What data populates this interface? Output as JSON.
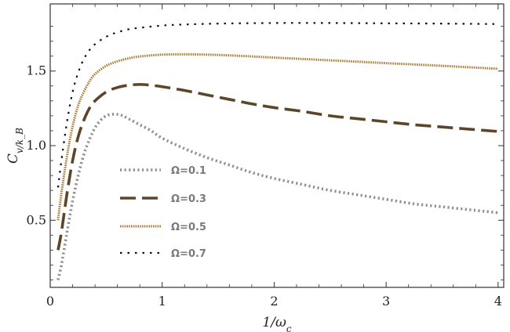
{
  "chart_data": {
    "type": "line",
    "title": "",
    "xlabel": "1/ω_c",
    "ylabel": "C_v/k_B",
    "xlim": [
      0,
      4.05
    ],
    "ylim": [
      0.05,
      1.95
    ],
    "xticks": [
      0,
      1,
      2,
      3,
      4
    ],
    "yticks": [
      0.5,
      1.0,
      1.5
    ],
    "xtick_labels": [
      "0",
      "1",
      "2",
      "3",
      "4"
    ],
    "ytick_labels": [
      "0.5",
      "1.0",
      "1.5"
    ],
    "grid": false,
    "legend_position": "center-left",
    "series": [
      {
        "name": "Ω=0.1",
        "color": "#8f8f8f",
        "style": "dotted-thick",
        "x": [
          0.07,
          0.1,
          0.15,
          0.2,
          0.25,
          0.3,
          0.35,
          0.4,
          0.45,
          0.5,
          0.55,
          0.6,
          0.65,
          0.7,
          0.8,
          0.9,
          1.0,
          1.2,
          1.4,
          1.6,
          1.8,
          2.0,
          2.25,
          2.5,
          2.75,
          3.0,
          3.25,
          3.5,
          3.75,
          4.0
        ],
        "y": [
          0.1,
          0.2,
          0.42,
          0.63,
          0.8,
          0.94,
          1.04,
          1.12,
          1.17,
          1.2,
          1.21,
          1.21,
          1.2,
          1.18,
          1.14,
          1.1,
          1.05,
          0.98,
          0.92,
          0.87,
          0.82,
          0.78,
          0.74,
          0.7,
          0.67,
          0.64,
          0.61,
          0.59,
          0.57,
          0.55
        ]
      },
      {
        "name": "Ω=0.3",
        "color": "#5c4529",
        "style": "long-dash",
        "x": [
          0.07,
          0.1,
          0.15,
          0.2,
          0.25,
          0.3,
          0.35,
          0.4,
          0.5,
          0.6,
          0.7,
          0.8,
          0.9,
          1.0,
          1.2,
          1.4,
          1.6,
          1.8,
          2.0,
          2.25,
          2.5,
          2.75,
          3.0,
          3.25,
          3.5,
          3.75,
          4.0
        ],
        "y": [
          0.3,
          0.42,
          0.68,
          0.9,
          1.06,
          1.17,
          1.25,
          1.3,
          1.36,
          1.39,
          1.405,
          1.41,
          1.405,
          1.395,
          1.37,
          1.34,
          1.31,
          1.28,
          1.255,
          1.23,
          1.2,
          1.18,
          1.16,
          1.14,
          1.125,
          1.11,
          1.095
        ]
      },
      {
        "name": "Ω=0.5",
        "color": "#a87f3f",
        "style": "fine-dotted",
        "x": [
          0.07,
          0.1,
          0.15,
          0.2,
          0.25,
          0.3,
          0.35,
          0.4,
          0.5,
          0.6,
          0.7,
          0.8,
          1.0,
          1.2,
          1.4,
          1.6,
          1.8,
          2.0,
          2.5,
          3.0,
          3.5,
          4.0
        ],
        "y": [
          0.5,
          0.68,
          0.93,
          1.13,
          1.27,
          1.36,
          1.43,
          1.48,
          1.535,
          1.565,
          1.585,
          1.598,
          1.61,
          1.612,
          1.61,
          1.605,
          1.598,
          1.59,
          1.572,
          1.553,
          1.535,
          1.515
        ]
      },
      {
        "name": "Ω=0.7",
        "color": "#111111",
        "style": "sparse-dot",
        "x": [
          0.07,
          0.1,
          0.15,
          0.2,
          0.25,
          0.3,
          0.35,
          0.4,
          0.5,
          0.6,
          0.7,
          0.8,
          1.0,
          1.2,
          1.5,
          2.0,
          2.5,
          3.0,
          3.5,
          4.0
        ],
        "y": [
          0.72,
          0.9,
          1.16,
          1.36,
          1.49,
          1.58,
          1.64,
          1.68,
          1.73,
          1.76,
          1.78,
          1.79,
          1.805,
          1.812,
          1.818,
          1.822,
          1.822,
          1.82,
          1.818,
          1.815
        ]
      }
    ]
  }
}
